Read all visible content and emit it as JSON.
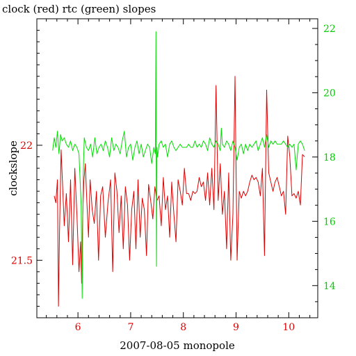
{
  "chart_data": {
    "type": "line",
    "title": "clock (red) rtc (green) slopes",
    "xlabel": "2007-08-05 monopole",
    "ylabel": "clockslope",
    "ylabel_right": "",
    "xlim": [
      5.22,
      10.55
    ],
    "ylim_left": [
      21.25,
      22.55
    ],
    "ylim_right": [
      13.0,
      22.3
    ],
    "x_ticks": [
      6,
      7,
      8,
      9,
      10
    ],
    "y_left_ticks": [
      21.5,
      22
    ],
    "y_right_ticks": [
      14,
      16,
      18,
      20,
      22
    ],
    "colors": {
      "axes": "#000000",
      "clock": "#dd0000",
      "rtc": "#00dd00",
      "left_ticks": "#dd0000",
      "right_ticks": "#00cc00"
    },
    "grid": false,
    "series": [
      {
        "name": "clock",
        "axis": "left",
        "color": "#dd0000",
        "x": [
          5.55,
          5.58,
          5.61,
          5.63,
          5.65,
          5.68,
          5.71,
          5.74,
          5.78,
          5.82,
          5.86,
          5.9,
          5.94,
          5.98,
          6.02,
          6.05,
          6.07,
          6.09,
          6.11,
          6.14,
          6.17,
          6.2,
          6.23,
          6.27,
          6.31,
          6.35,
          6.39,
          6.43,
          6.47,
          6.52,
          6.57,
          6.62,
          6.66,
          6.7,
          6.74,
          6.78,
          6.82,
          6.86,
          6.9,
          6.94,
          6.98,
          7.02,
          7.06,
          7.1,
          7.14,
          7.18,
          7.22,
          7.26,
          7.3,
          7.34,
          7.38,
          7.42,
          7.46,
          7.5,
          7.54,
          7.58,
          7.62,
          7.66,
          7.7,
          7.74,
          7.78,
          7.82,
          7.86,
          7.9,
          7.94,
          7.98,
          8.02,
          8.06,
          8.1,
          8.14,
          8.18,
          8.22,
          8.26,
          8.3,
          8.34,
          8.38,
          8.42,
          8.46,
          8.5,
          8.54,
          8.58,
          8.62,
          8.66,
          8.7,
          8.74,
          8.78,
          8.82,
          8.86,
          8.9,
          8.94,
          8.98,
          9.02,
          9.06,
          9.1,
          9.14,
          9.18,
          9.22,
          9.26,
          9.3,
          9.34,
          9.38,
          9.42,
          9.46,
          9.5,
          9.54,
          9.58,
          9.62,
          9.66,
          9.7,
          9.74,
          9.78,
          9.82,
          9.86,
          9.9,
          9.94,
          9.98,
          10.02,
          10.06,
          10.1,
          10.14,
          10.18,
          10.22,
          10.26,
          10.3
        ],
        "y": [
          21.78,
          21.75,
          21.85,
          21.3,
          21.62,
          21.98,
          21.82,
          21.65,
          21.79,
          21.58,
          21.85,
          21.48,
          21.9,
          21.7,
          21.45,
          21.58,
          21.4,
          21.68,
          21.84,
          21.92,
          21.75,
          21.6,
          21.85,
          21.72,
          21.66,
          21.8,
          21.5,
          21.78,
          21.82,
          21.6,
          21.75,
          21.85,
          21.45,
          21.88,
          21.8,
          21.62,
          21.78,
          21.55,
          21.82,
          21.74,
          21.5,
          21.72,
          21.8,
          21.55,
          21.85,
          21.6,
          21.77,
          21.72,
          21.52,
          21.83,
          21.76,
          21.68,
          21.82,
          21.76,
          21.78,
          21.65,
          21.86,
          21.72,
          21.78,
          21.6,
          21.84,
          21.7,
          21.58,
          21.85,
          21.8,
          21.74,
          21.9,
          21.79,
          21.79,
          21.76,
          21.8,
          21.79,
          21.8,
          21.86,
          21.82,
          21.84,
          21.76,
          21.88,
          21.74,
          21.9,
          21.72,
          22.26,
          21.76,
          21.92,
          21.7,
          21.8,
          21.55,
          21.88,
          21.5,
          21.7,
          22.3,
          21.5,
          21.8,
          21.77,
          21.8,
          21.78,
          21.8,
          21.84,
          21.87,
          21.85,
          21.86,
          21.84,
          21.78,
          21.9,
          21.52,
          22.24,
          21.88,
          21.84,
          21.8,
          21.84,
          21.86,
          21.82,
          21.78,
          21.8,
          21.7,
          22.04,
          21.95,
          21.78,
          21.79,
          21.77,
          21.8,
          21.74,
          21.96,
          21.95
        ]
      },
      {
        "name": "rtc",
        "axis": "right",
        "color": "#00dd00",
        "x": [
          5.52,
          5.55,
          5.58,
          5.61,
          5.64,
          5.67,
          5.7,
          5.74,
          5.78,
          5.82,
          5.86,
          5.9,
          5.94,
          5.98,
          6.02,
          6.06,
          6.08,
          6.1,
          6.12,
          6.16,
          6.2,
          6.24,
          6.28,
          6.32,
          6.36,
          6.4,
          6.44,
          6.48,
          6.52,
          6.56,
          6.6,
          6.64,
          6.68,
          6.72,
          6.76,
          6.8,
          6.84,
          6.88,
          6.92,
          6.96,
          7.0,
          7.04,
          7.08,
          7.12,
          7.16,
          7.2,
          7.24,
          7.28,
          7.32,
          7.36,
          7.4,
          7.44,
          7.47,
          7.48,
          7.49,
          7.5,
          7.51,
          7.54,
          7.58,
          7.62,
          7.66,
          7.7,
          7.74,
          7.78,
          7.82,
          7.86,
          7.9,
          7.94,
          7.98,
          8.02,
          8.06,
          8.1,
          8.14,
          8.18,
          8.22,
          8.26,
          8.3,
          8.34,
          8.38,
          8.42,
          8.46,
          8.5,
          8.54,
          8.58,
          8.62,
          8.66,
          8.7,
          8.72,
          8.74,
          8.78,
          8.82,
          8.86,
          8.9,
          8.94,
          8.98,
          9.02,
          9.06,
          9.1,
          9.14,
          9.18,
          9.22,
          9.26,
          9.3,
          9.34,
          9.38,
          9.42,
          9.46,
          9.5,
          9.54,
          9.58,
          9.62,
          9.66,
          9.7,
          9.74,
          9.78,
          9.82,
          9.86,
          9.9,
          9.94,
          9.98,
          10.02,
          10.06,
          10.1,
          10.14,
          10.18,
          10.22,
          10.26,
          10.3
        ],
        "y": [
          18.2,
          18.6,
          18.3,
          18.8,
          18.1,
          18.7,
          18.5,
          18.6,
          18.4,
          18.3,
          18.5,
          18.2,
          18.4,
          18.3,
          18.1,
          16.5,
          13.6,
          17.5,
          18.6,
          18.3,
          18.2,
          18.4,
          18.0,
          18.6,
          18.1,
          18.3,
          18.4,
          18.2,
          18.5,
          18.3,
          18.0,
          18.6,
          18.2,
          18.4,
          18.3,
          18.1,
          18.5,
          18.8,
          18.0,
          18.3,
          18.4,
          17.9,
          18.3,
          18.5,
          18.1,
          18.4,
          18.0,
          18.2,
          18.4,
          18.3,
          17.8,
          18.3,
          18.1,
          21.9,
          14.6,
          18.3,
          18.0,
          18.4,
          18.5,
          18.3,
          18.4,
          18.0,
          18.4,
          18.5,
          18.3,
          18.2,
          18.3,
          18.4,
          18.3,
          18.3,
          18.3,
          18.4,
          18.3,
          18.3,
          18.5,
          18.3,
          18.4,
          18.3,
          18.5,
          18.4,
          18.2,
          18.6,
          18.4,
          18.3,
          18.5,
          18.4,
          18.2,
          18.9,
          18.4,
          18.3,
          18.5,
          18.4,
          18.2,
          18.5,
          18.3,
          17.9,
          18.3,
          18.4,
          18.1,
          18.4,
          18.2,
          18.4,
          18.3,
          18.4,
          18.5,
          18.2,
          18.4,
          18.6,
          18.3,
          18.7,
          18.3,
          18.5,
          18.4,
          18.5,
          18.4,
          18.4,
          18.4,
          18.5,
          18.4,
          18.3,
          18.4,
          18.3,
          18.4,
          17.6,
          18.4,
          18.5,
          18.4,
          18.2
        ]
      }
    ]
  }
}
